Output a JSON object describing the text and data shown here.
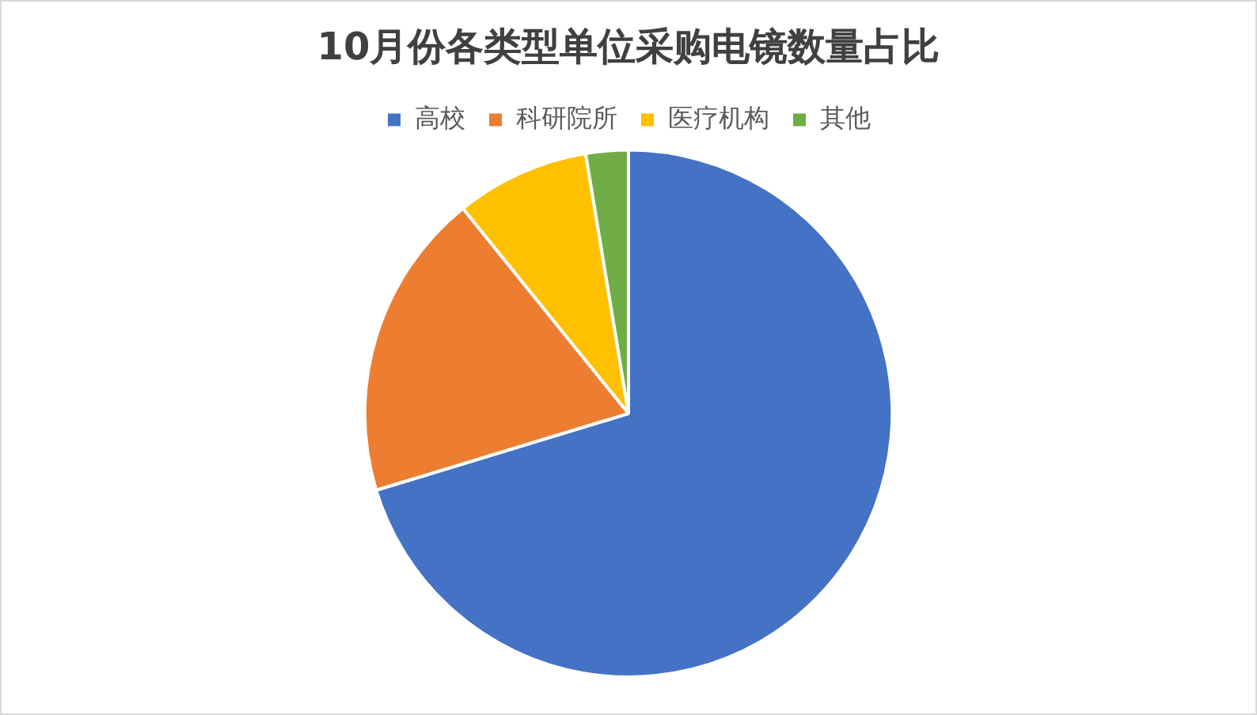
{
  "chart_data": {
    "type": "pie",
    "title": "10月份各类型单位采购电镜数量占比",
    "categories": [
      "高校",
      "科研院所",
      "医疗机构",
      "其他"
    ],
    "values": [
      70.3,
      18.9,
      8.2,
      2.6
    ],
    "colors": [
      "#4472c4",
      "#ed7d31",
      "#ffc000",
      "#70ad47"
    ],
    "legend": "top"
  }
}
